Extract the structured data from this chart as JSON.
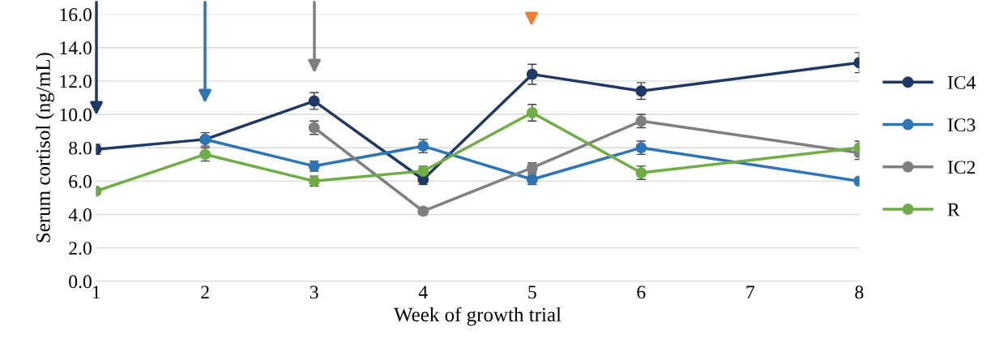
{
  "chart_data": {
    "type": "line",
    "xlabel": "Week of growth trial",
    "ylabel": "Serum cortisol (ng/mL)",
    "x": [
      1,
      2,
      3,
      4,
      5,
      6,
      8
    ],
    "series": [
      {
        "name": "IC4",
        "color": "#1f3864",
        "values": [
          7.9,
          8.5,
          10.8,
          6.1,
          12.4,
          11.4,
          13.1
        ],
        "errors": [
          0.3,
          0.4,
          0.5,
          0.3,
          0.6,
          0.5,
          0.6
        ]
      },
      {
        "name": "IC3",
        "color": "#2e75b6",
        "values": [
          null,
          8.5,
          6.9,
          8.1,
          6.1,
          8.0,
          6.0
        ],
        "errors": [
          null,
          null,
          0.3,
          0.4,
          0.3,
          0.4,
          0.2
        ]
      },
      {
        "name": "IC2",
        "color": "#7f7f7f",
        "values": [
          null,
          null,
          9.2,
          4.2,
          6.8,
          9.6,
          7.7
        ],
        "errors": [
          null,
          null,
          0.4,
          0.2,
          0.3,
          0.4,
          0.4
        ]
      },
      {
        "name": "R",
        "color": "#70ad47",
        "values": [
          5.4,
          7.6,
          6.0,
          6.6,
          10.1,
          6.5,
          8.0
        ],
        "errors": [
          0.2,
          0.4,
          0.3,
          0.3,
          0.5,
          0.4,
          0.4
        ]
      }
    ],
    "xlim": [
      1,
      8
    ],
    "xticks": [
      1,
      2,
      3,
      4,
      5,
      6,
      7,
      8
    ],
    "ylim": [
      0,
      16
    ],
    "yticks": [
      {
        "value": 0,
        "label": "0.0"
      },
      {
        "value": 2,
        "label": "2.0"
      },
      {
        "value": 4,
        "label": "4.0"
      },
      {
        "value": 6,
        "label": "6.0"
      },
      {
        "value": 8,
        "label": "8.0"
      },
      {
        "value": 10,
        "label": "10.0"
      },
      {
        "value": 12,
        "label": "12.0"
      },
      {
        "value": 14,
        "label": "14.0"
      },
      {
        "value": 16,
        "label": "16.0"
      }
    ],
    "grid": "y",
    "legend": "right",
    "marker": "circle",
    "line_style": "solid"
  }
}
